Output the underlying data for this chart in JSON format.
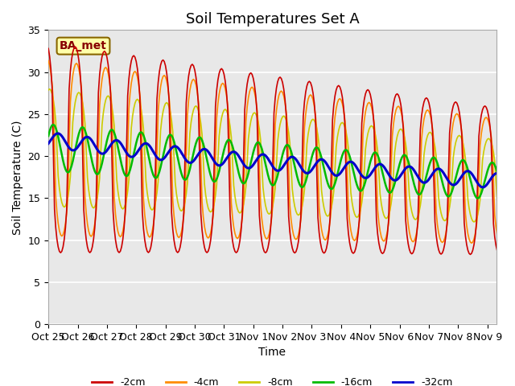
{
  "title": "Soil Temperatures Set A",
  "xlabel": "Time",
  "ylabel": "Soil Temperature (C)",
  "ylim": [
    0,
    35
  ],
  "yticks": [
    0,
    5,
    10,
    15,
    20,
    25,
    30,
    35
  ],
  "xtick_labels": [
    "Oct 25",
    "Oct 26",
    "Oct 27",
    "Oct 28",
    "Oct 29",
    "Oct 30",
    "Oct 31",
    "Nov 1",
    "Nov 2",
    "Nov 3",
    "Nov 4",
    "Nov 5",
    "Nov 6",
    "Nov 7",
    "Nov 8",
    "Nov 9"
  ],
  "colors": {
    "-2cm": "#cc0000",
    "-4cm": "#ff8c00",
    "-8cm": "#cccc00",
    "-16cm": "#00bb00",
    "-32cm": "#0000cc"
  },
  "annotation_text": "BA_met",
  "annotation_bg": "#ffffaa",
  "annotation_border": "#886600",
  "fig_bg": "#ffffff",
  "plot_bg": "#e8e8e8",
  "grid_color": "#ffffff",
  "title_fontsize": 13,
  "axis_fontsize": 10,
  "tick_fontsize": 9,
  "lw_shallow": 1.2,
  "lw_16": 1.8,
  "lw_32": 2.2
}
